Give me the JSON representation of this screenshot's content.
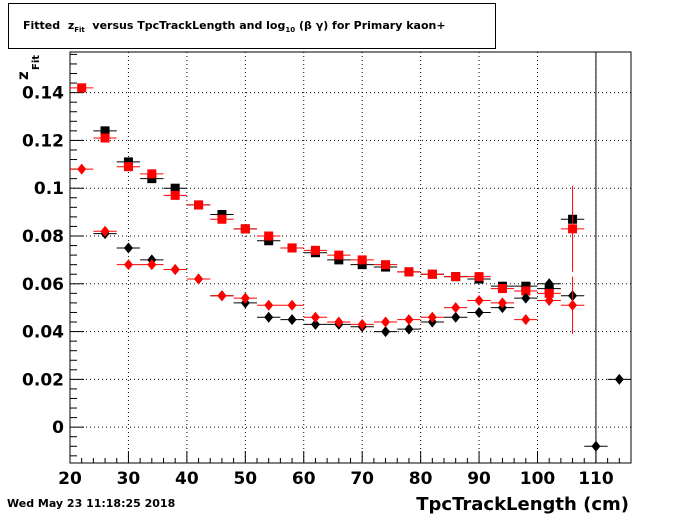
{
  "title": {
    "prefix": "Fitted",
    "z_label": "z",
    "z_sub": "Fit",
    "middle": "versus TpcTrackLength and log",
    "log_sub": "10",
    "suffix": "(β γ) for Primary kaon+"
  },
  "footer_date": "Wed May 23 11:18:25 2018",
  "colors": {
    "series_a": "#000000",
    "series_b": "#ff0000",
    "grid": "#000000"
  },
  "chart_data": {
    "type": "scatter",
    "xlabel": "TpcTrackLength (cm)",
    "ylabel_main": "z",
    "ylabel_sub": "Fit",
    "xlim": [
      20,
      116
    ],
    "ylim": [
      -0.015,
      0.157
    ],
    "x_ticks": [
      20,
      30,
      40,
      50,
      60,
      70,
      80,
      90,
      100,
      110
    ],
    "y_ticks": [
      0,
      0.02,
      0.04,
      0.06,
      0.08,
      0.1,
      0.12,
      0.14
    ],
    "y_tick_labels": [
      "0",
      "0.02",
      "0.04",
      "0.06",
      "0.08",
      "0.1",
      "0.12",
      "0.14"
    ],
    "grid": true,
    "x_bin_half_width": 2,
    "series": [
      {
        "marker": "square",
        "color": "#000000",
        "points": [
          [
            26,
            0.124
          ],
          [
            30,
            0.111
          ],
          [
            34,
            0.104
          ],
          [
            38,
            0.1
          ],
          [
            42,
            0.093
          ],
          [
            46,
            0.089
          ],
          [
            50,
            0.083
          ],
          [
            54,
            0.078
          ],
          [
            58,
            0.075
          ],
          [
            62,
            0.073
          ],
          [
            66,
            0.07
          ],
          [
            70,
            0.068
          ],
          [
            74,
            0.067
          ],
          [
            78,
            0.065
          ],
          [
            82,
            0.064
          ],
          [
            86,
            0.063
          ],
          [
            90,
            0.062
          ],
          [
            94,
            0.059
          ],
          [
            98,
            0.059
          ],
          [
            102,
            0.058
          ],
          [
            106,
            0.087
          ]
        ]
      },
      {
        "marker": "square",
        "color": "#ff0000",
        "points": [
          [
            22,
            0.142
          ],
          [
            26,
            0.121
          ],
          [
            30,
            0.109
          ],
          [
            34,
            0.106
          ],
          [
            38,
            0.097
          ],
          [
            42,
            0.093
          ],
          [
            46,
            0.087
          ],
          [
            50,
            0.083
          ],
          [
            54,
            0.08
          ],
          [
            58,
            0.075
          ],
          [
            62,
            0.074
          ],
          [
            66,
            0.072
          ],
          [
            70,
            0.07
          ],
          [
            74,
            0.068
          ],
          [
            78,
            0.065
          ],
          [
            82,
            0.064
          ],
          [
            86,
            0.063
          ],
          [
            90,
            0.063
          ],
          [
            94,
            0.058
          ],
          [
            98,
            0.057
          ],
          [
            102,
            0.056
          ],
          [
            106,
            0.083
          ]
        ],
        "errors": {
          "106": 0.018
        }
      },
      {
        "marker": "diamond",
        "color": "#000000",
        "points": [
          [
            26,
            0.081
          ],
          [
            30,
            0.075
          ],
          [
            34,
            0.07
          ],
          [
            38,
            0.066
          ],
          [
            42,
            0.062
          ],
          [
            46,
            0.055
          ],
          [
            50,
            0.052
          ],
          [
            54,
            0.046
          ],
          [
            58,
            0.045
          ],
          [
            62,
            0.043
          ],
          [
            66,
            0.043
          ],
          [
            70,
            0.042
          ],
          [
            74,
            0.04
          ],
          [
            78,
            0.041
          ],
          [
            82,
            0.044
          ],
          [
            86,
            0.046
          ],
          [
            90,
            0.048
          ],
          [
            94,
            0.05
          ],
          [
            98,
            0.054
          ],
          [
            102,
            0.06
          ],
          [
            106,
            0.055
          ],
          [
            110,
            -0.008
          ],
          [
            114,
            0.02
          ]
        ]
      },
      {
        "marker": "diamond",
        "color": "#ff0000",
        "points": [
          [
            22,
            0.108
          ],
          [
            26,
            0.082
          ],
          [
            30,
            0.068
          ],
          [
            34,
            0.068
          ],
          [
            38,
            0.066
          ],
          [
            42,
            0.062
          ],
          [
            46,
            0.055
          ],
          [
            50,
            0.054
          ],
          [
            54,
            0.051
          ],
          [
            58,
            0.051
          ],
          [
            62,
            0.046
          ],
          [
            66,
            0.044
          ],
          [
            70,
            0.043
          ],
          [
            74,
            0.044
          ],
          [
            78,
            0.045
          ],
          [
            82,
            0.046
          ],
          [
            86,
            0.05
          ],
          [
            90,
            0.053
          ],
          [
            94,
            0.052
          ],
          [
            98,
            0.045
          ],
          [
            102,
            0.053
          ],
          [
            106,
            0.051
          ]
        ],
        "errors": {
          "106": 0.012
        }
      }
    ]
  }
}
